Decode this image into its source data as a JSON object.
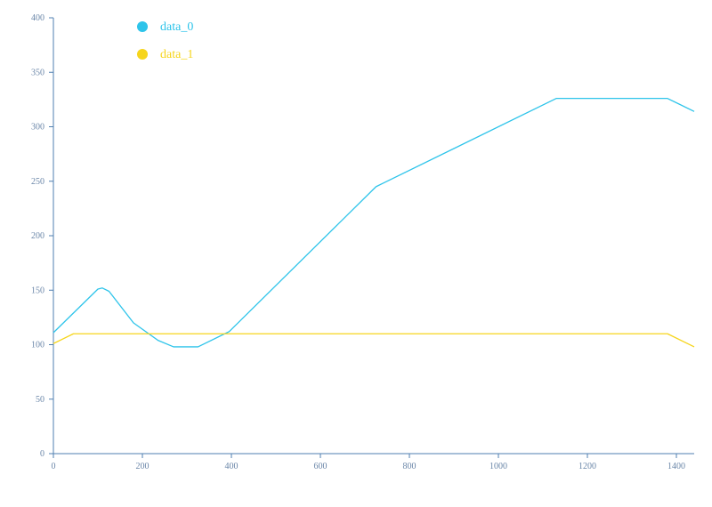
{
  "chart_data": {
    "type": "line",
    "title": "",
    "xlabel": "",
    "ylabel": "",
    "xlim": [
      0,
      1440
    ],
    "ylim": [
      0,
      400
    ],
    "x_ticks": [
      0,
      200,
      400,
      600,
      800,
      1000,
      1200,
      1400
    ],
    "y_ticks": [
      0,
      50,
      100,
      150,
      200,
      250,
      300,
      350,
      400
    ],
    "grid": false,
    "legend_position": "top-left",
    "axis_color": "#4f7fb0",
    "series": [
      {
        "name": "data_0",
        "color": "#2ec4ea",
        "x": [
          0,
          100,
          110,
          125,
          180,
          235,
          270,
          325,
          395,
          725,
          740,
          1130,
          1380,
          1440
        ],
        "y": [
          111,
          151,
          152,
          149,
          120,
          104,
          98,
          98,
          112,
          245,
          248,
          326,
          326,
          314
        ]
      },
      {
        "name": "data_1",
        "color": "#f6d51c",
        "x": [
          0,
          45,
          1380,
          1440
        ],
        "y": [
          101,
          110,
          110,
          98
        ]
      }
    ]
  }
}
